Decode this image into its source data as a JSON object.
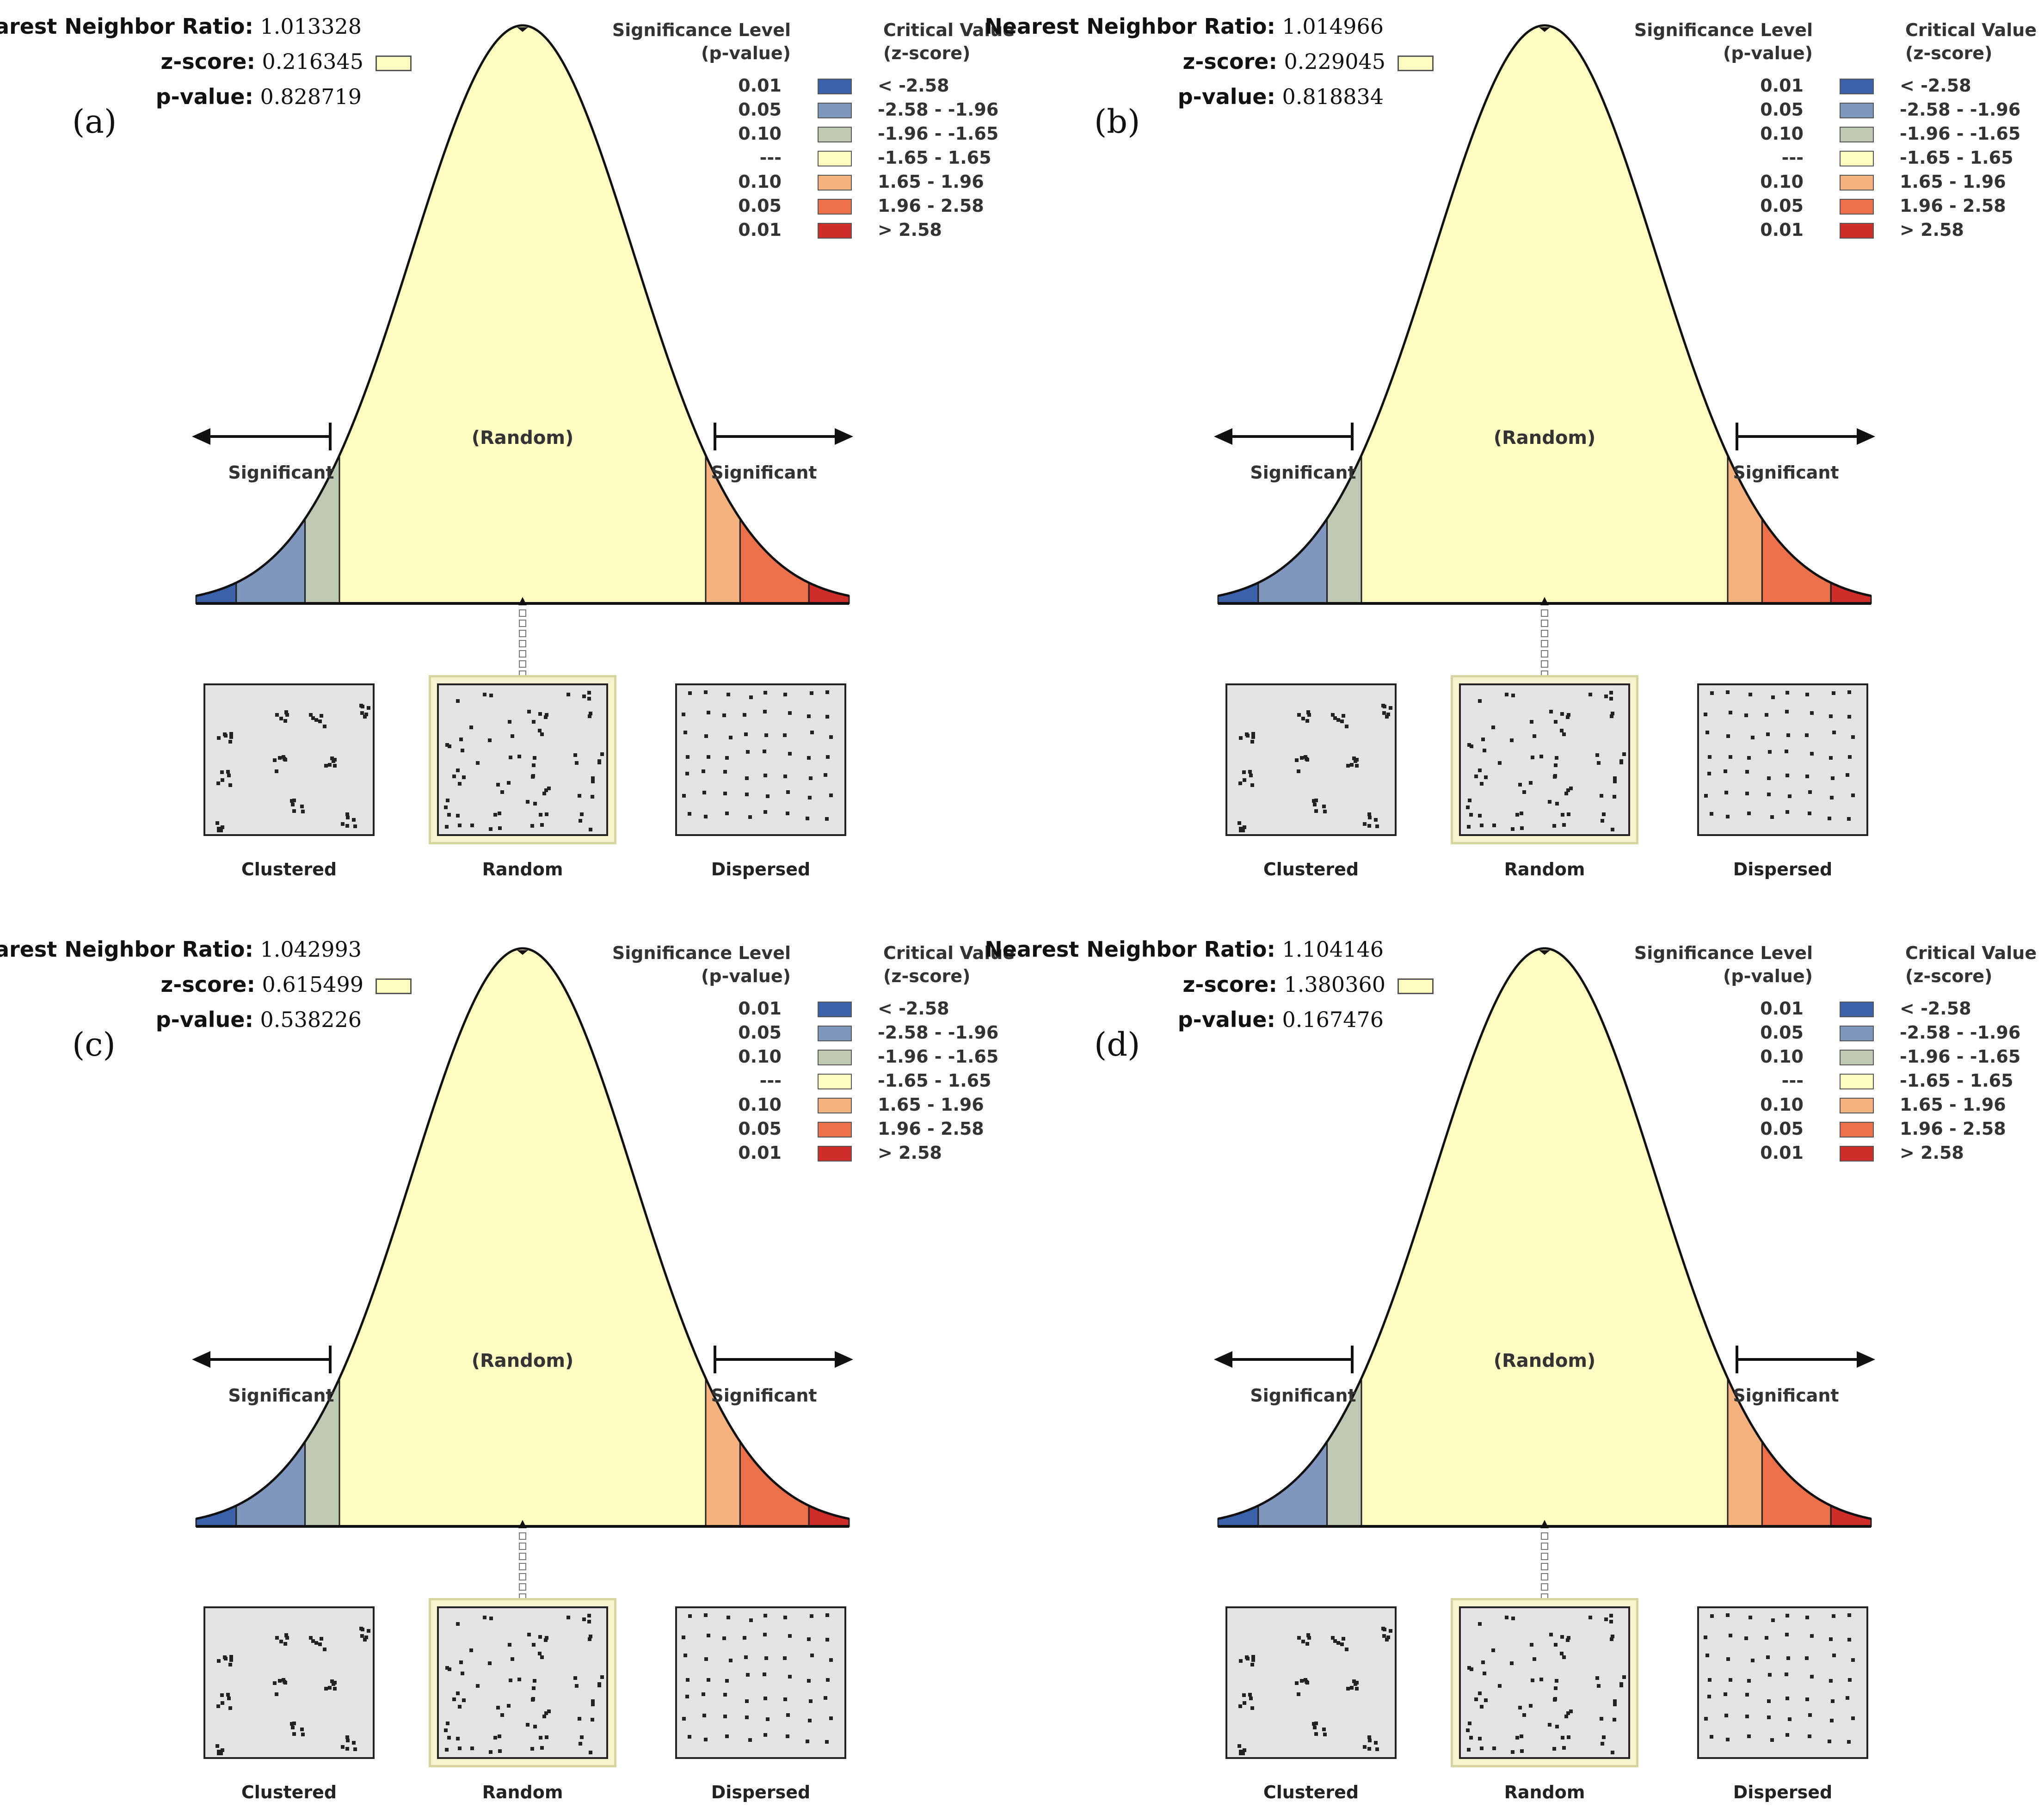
{
  "stat_labels": {
    "ratio": "Nearest Neighbor Ratio:",
    "z": "z-score:",
    "p": "p-value:"
  },
  "legend": {
    "header_sig": "Significance Level\n(p-value)",
    "header_crit": "Critical Value\n(z-score)",
    "rows": [
      {
        "p": "0.01",
        "z": "< -2.58",
        "color": "#3b62a8"
      },
      {
        "p": "0.05",
        "z": "-2.58 - -1.96",
        "color": "#7f97bd"
      },
      {
        "p": "0.10",
        "z": "-1.96 - -1.65",
        "color": "#bfc8b3"
      },
      {
        "p": "---",
        "z": "-1.65 - 1.65",
        "color": "#fefcc0"
      },
      {
        "p": "0.10",
        "z": "1.65 - 1.96",
        "color": "#f5b27e"
      },
      {
        "p": "0.05",
        "z": "1.96 - 2.58",
        "color": "#ec7049"
      },
      {
        "p": "0.01",
        "z": "> 2.58",
        "color": "#cf2d2a"
      }
    ]
  },
  "curve_labels": {
    "random": "(Random)",
    "significant_left": "Significant",
    "significant_right": "Significant"
  },
  "pattern_labels": {
    "clustered": "Clustered",
    "random": "Random",
    "dispersed": "Dispersed"
  },
  "chart_data": [
    {
      "type": "normal-distribution",
      "panel": "(a)",
      "nearest_neighbor_ratio": "1.013328",
      "z_score": "0.216345",
      "p_value": "0.828719",
      "zone": "(Random)"
    },
    {
      "type": "normal-distribution",
      "panel": "(b)",
      "nearest_neighbor_ratio": "1.014966",
      "z_score": "0.229045",
      "p_value": "0.818834",
      "zone": "(Random)"
    },
    {
      "type": "normal-distribution",
      "panel": "(c)",
      "nearest_neighbor_ratio": "1.042993",
      "z_score": "0.615499",
      "p_value": "0.538226",
      "zone": "(Random)"
    },
    {
      "type": "normal-distribution",
      "panel": "(d)",
      "nearest_neighbor_ratio": "1.104146",
      "z_score": "1.380360",
      "p_value": "0.167476",
      "zone": "(Random)"
    }
  ]
}
